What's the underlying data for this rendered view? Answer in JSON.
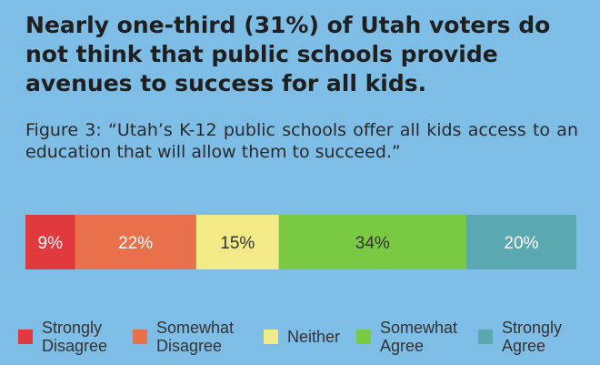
{
  "title": "Nearly one-third (31%) of Utah voters do not think that public schools provide avenues to success for all kids.",
  "subtitle": "Figure 3: “Utah’s K-12 public schools offer all kids access to an education that will allow them to succeed.”",
  "chart_data": {
    "type": "bar",
    "orientation": "horizontal-stacked-100",
    "categories": [
      "Strongly\nDisagree",
      "Somewhat\nDisagree",
      "Neither",
      "Somewhat\nAgree",
      "Strongly\nAgree"
    ],
    "values": [
      9,
      22,
      15,
      34,
      20
    ],
    "value_labels": [
      "9%",
      "22%",
      "15%",
      "34%",
      "20%"
    ],
    "colors": [
      "#e0393e",
      "#e8704a",
      "#f2ea86",
      "#7ac943",
      "#5aa9b0"
    ],
    "label_colors": [
      "#ffffff",
      "#ffffff",
      "#333333",
      "#333333",
      "#ffffff"
    ],
    "legend_position": "bottom",
    "grid": false
  }
}
